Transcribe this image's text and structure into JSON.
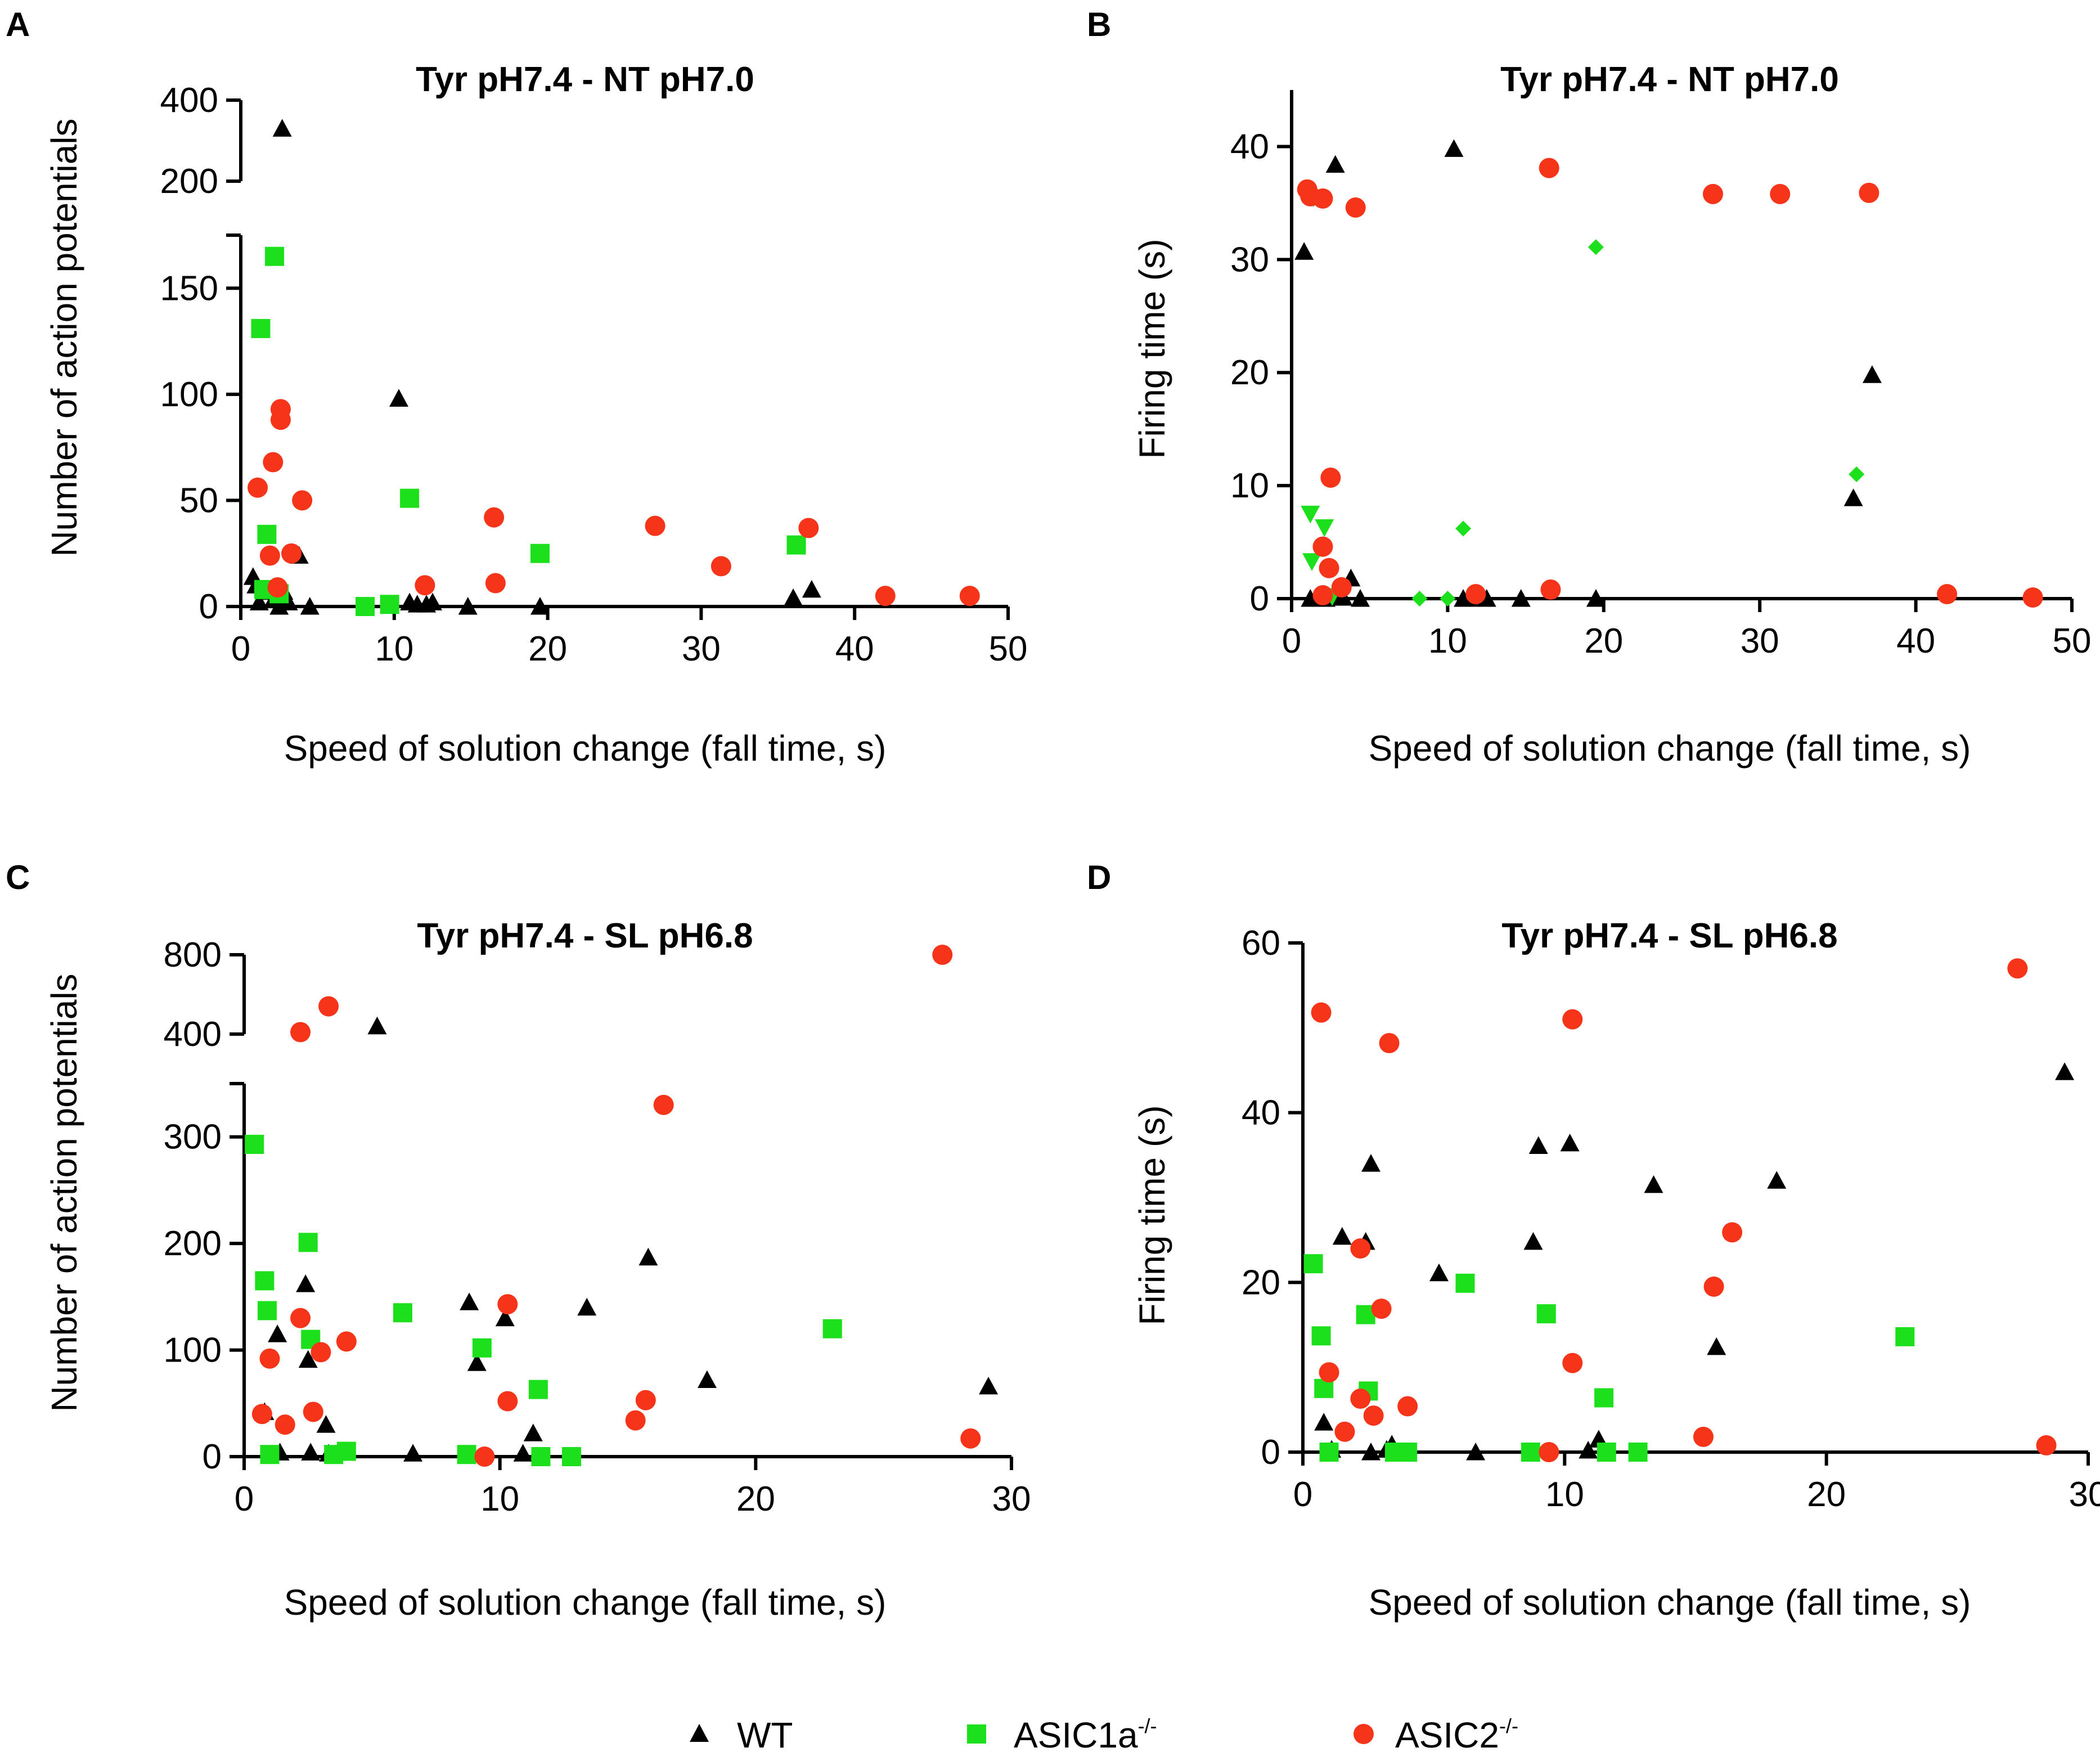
{
  "legend": [
    {
      "series": "WT",
      "label": "WT",
      "sup": "",
      "shape": "triangle",
      "color": "#000000"
    },
    {
      "series": "ASIC1a",
      "label": "ASIC1a",
      "sup": "-/-",
      "shape": "square",
      "color": "#1ce01c"
    },
    {
      "series": "ASIC2",
      "label": "ASIC2",
      "sup": "-/-",
      "shape": "circle",
      "color": "#f63419"
    }
  ],
  "colors": {
    "WT": "#000000",
    "ASIC1a": "#1ce01c",
    "ASIC2": "#f63419"
  },
  "chart_data": [
    {
      "id": "A",
      "letter": "A",
      "type": "scatter",
      "title": "Tyr pH7.4 - NT pH7.0",
      "xlabel": "Speed of solution change (fall time, s)",
      "ylabel": "Number of action potentials",
      "xlim": [
        0,
        50
      ],
      "xticks": [
        "0",
        "10",
        "20",
        "30",
        "40",
        "50"
      ],
      "ylim_lower": [
        0,
        175
      ],
      "yticks_lower": [
        "0",
        "50",
        "100",
        "150"
      ],
      "ylim_upper": [
        200,
        400
      ],
      "yticks_upper": [
        "200",
        "400"
      ],
      "series": [
        {
          "name": "WT",
          "points": [
            [
              0.8,
              14
            ],
            [
              1.0,
              10
            ],
            [
              1.2,
              2
            ],
            [
              1.8,
              7
            ],
            [
              2.1,
              3
            ],
            [
              2.5,
              0
            ],
            [
              2.7,
              330
            ],
            [
              2.8,
              7
            ],
            [
              3.1,
              2
            ],
            [
              3.8,
              24
            ],
            [
              4.5,
              0
            ],
            [
              10.3,
              98
            ],
            [
              11.0,
              2
            ],
            [
              11.5,
              1
            ],
            [
              12.1,
              1
            ],
            [
              12.5,
              2
            ],
            [
              14.8,
              0
            ],
            [
              19.5,
              0
            ],
            [
              36.0,
              4
            ],
            [
              37.2,
              8
            ]
          ]
        },
        {
          "name": "ASIC1a",
          "points": [
            [
              1.3,
              131
            ],
            [
              1.7,
              34
            ],
            [
              2.2,
              165
            ],
            [
              1.5,
              8
            ],
            [
              2.5,
              6
            ],
            [
              8.1,
              0
            ],
            [
              9.7,
              1
            ],
            [
              11.0,
              51
            ],
            [
              19.5,
              25
            ],
            [
              36.2,
              29
            ]
          ]
        },
        {
          "name": "ASIC2",
          "points": [
            [
              1.1,
              56
            ],
            [
              1.9,
              24
            ],
            [
              2.1,
              68
            ],
            [
              2.6,
              93
            ],
            [
              2.6,
              88
            ],
            [
              2.4,
              9
            ],
            [
              3.3,
              25
            ],
            [
              4.0,
              50
            ],
            [
              12.0,
              10
            ],
            [
              16.5,
              42
            ],
            [
              16.6,
              11
            ],
            [
              27.0,
              38
            ],
            [
              31.3,
              19
            ],
            [
              37.0,
              37
            ],
            [
              42.0,
              5
            ],
            [
              47.5,
              5
            ]
          ]
        }
      ]
    },
    {
      "id": "B",
      "letter": "B",
      "type": "scatter",
      "title": "Tyr pH7.4 - NT pH7.0",
      "xlabel": "Speed of solution change (fall time, s)",
      "ylabel": "Firing time (s)",
      "xlim": [
        0,
        50
      ],
      "xticks": [
        "0",
        "10",
        "20",
        "30",
        "40",
        "50"
      ],
      "ylim": [
        0,
        45
      ],
      "yticks": [
        "0",
        "10",
        "20",
        "30",
        "40"
      ],
      "series": [
        {
          "name": "WT",
          "points": [
            [
              0.8,
              30.7
            ],
            [
              2.8,
              38.4
            ],
            [
              10.4,
              39.8
            ],
            [
              1.2,
              0
            ],
            [
              1.8,
              0.3
            ],
            [
              2.2,
              0
            ],
            [
              2.9,
              0.2
            ],
            [
              3.3,
              0.1
            ],
            [
              3.8,
              1.8
            ],
            [
              4.4,
              0
            ],
            [
              11.0,
              0
            ],
            [
              11.4,
              0
            ],
            [
              12.0,
              0.2
            ],
            [
              12.5,
              0
            ],
            [
              14.7,
              0
            ],
            [
              19.5,
              0
            ],
            [
              36.0,
              8.9
            ],
            [
              37.2,
              19.8
            ]
          ]
        },
        {
          "name": "ASIC1a_down",
          "marker": "triangle-down",
          "points": [
            [
              1.4,
              35.5
            ],
            [
              1.2,
              7.5
            ],
            [
              2.1,
              6.3
            ],
            [
              1.3,
              3.3
            ],
            [
              2.6,
              0.2
            ]
          ]
        },
        {
          "name": "ASIC1a_diamond",
          "marker": "diamond",
          "points": [
            [
              19.5,
              31.1
            ],
            [
              36.2,
              11.0
            ],
            [
              11.0,
              6.2
            ],
            [
              8.2,
              0
            ],
            [
              10.0,
              0
            ]
          ]
        },
        {
          "name": "ASIC2",
          "points": [
            [
              1.0,
              36.2
            ],
            [
              1.2,
              35.6
            ],
            [
              2.0,
              35.4
            ],
            [
              4.1,
              34.6
            ],
            [
              16.5,
              38.1
            ],
            [
              27.0,
              35.8
            ],
            [
              31.3,
              35.8
            ],
            [
              37.0,
              35.9
            ],
            [
              2.5,
              10.7
            ],
            [
              2.0,
              4.6
            ],
            [
              2.4,
              2.7
            ],
            [
              3.2,
              1.0
            ],
            [
              2.0,
              0.3
            ],
            [
              11.8,
              0.4
            ],
            [
              16.6,
              0.8
            ],
            [
              42.0,
              0.4
            ],
            [
              47.5,
              0.1
            ]
          ]
        }
      ]
    },
    {
      "id": "C",
      "letter": "C",
      "type": "scatter",
      "title": "Tyr pH7.4 - SL pH6.8",
      "xlabel": "Speed of solution change (fall time, s)",
      "ylabel": "Number of action potentials",
      "xlim": [
        0,
        30
      ],
      "xticks": [
        "0",
        "10",
        "20",
        "30"
      ],
      "ylim_lower": [
        0,
        350
      ],
      "yticks_lower": [
        "0",
        "100",
        "200",
        "300"
      ],
      "ylim_upper": [
        400,
        800
      ],
      "yticks_upper": [
        "400",
        "800"
      ],
      "series": [
        {
          "name": "WT",
          "points": [
            [
              0.8,
              42
            ],
            [
              1.3,
              115
            ],
            [
              1.4,
              4
            ],
            [
              2.4,
              162
            ],
            [
              2.5,
              91
            ],
            [
              2.6,
              4
            ],
            [
              3.2,
              30
            ],
            [
              3.3,
              3
            ],
            [
              5.2,
              440
            ],
            [
              6.6,
              3
            ],
            [
              8.8,
              145
            ],
            [
              9.1,
              88
            ],
            [
              10.2,
              130
            ],
            [
              10.9,
              3
            ],
            [
              11.3,
              22
            ],
            [
              13.4,
              140
            ],
            [
              15.8,
              187
            ],
            [
              18.1,
              72
            ],
            [
              29.1,
              66
            ]
          ]
        },
        {
          "name": "ASIC1a",
          "points": [
            [
              0.4,
              293
            ],
            [
              0.8,
              165
            ],
            [
              0.9,
              137
            ],
            [
              1.0,
              2
            ],
            [
              2.5,
              201
            ],
            [
              2.6,
              110
            ],
            [
              3.5,
              2
            ],
            [
              4.0,
              5
            ],
            [
              6.2,
              135
            ],
            [
              8.7,
              2
            ],
            [
              9.3,
              102
            ],
            [
              11.5,
              63
            ],
            [
              11.6,
              0
            ],
            [
              12.8,
              0
            ],
            [
              23.0,
              120
            ]
          ]
        },
        {
          "name": "ASIC2",
          "points": [
            [
              0.7,
              40
            ],
            [
              1.0,
              92
            ],
            [
              1.6,
              30
            ],
            [
              2.2,
              130
            ],
            [
              2.2,
              410
            ],
            [
              2.7,
              42
            ],
            [
              3.0,
              98
            ],
            [
              3.3,
              540
            ],
            [
              4.0,
              108
            ],
            [
              9.4,
              0
            ],
            [
              10.3,
              143
            ],
            [
              10.3,
              52
            ],
            [
              15.3,
              34
            ],
            [
              15.7,
              53
            ],
            [
              16.4,
              330
            ],
            [
              27.3,
              800
            ],
            [
              28.4,
              17
            ]
          ]
        }
      ]
    },
    {
      "id": "D",
      "letter": "D",
      "type": "scatter",
      "title": "Tyr pH7.4 - SL pH6.8",
      "xlabel": "Speed of solution change (fall time, s)",
      "ylabel": "Firing time (s)",
      "xlim": [
        0,
        30
      ],
      "xticks": [
        "0",
        "10",
        "20",
        "30"
      ],
      "ylim": [
        0,
        60
      ],
      "yticks": [
        "0",
        "20",
        "40",
        "60"
      ],
      "series": [
        {
          "name": "WT",
          "points": [
            [
              0.8,
              3.5
            ],
            [
              1.1,
              0.3
            ],
            [
              1.5,
              25.4
            ],
            [
              2.4,
              24.8
            ],
            [
              2.6,
              0
            ],
            [
              2.6,
              34.0
            ],
            [
              3.2,
              0.3
            ],
            [
              3.4,
              0.9
            ],
            [
              5.2,
              21.1
            ],
            [
              6.6,
              0
            ],
            [
              8.8,
              24.8
            ],
            [
              9.0,
              36.1
            ],
            [
              10.2,
              36.4
            ],
            [
              10.9,
              0.2
            ],
            [
              11.3,
              1.5
            ],
            [
              13.4,
              31.5
            ],
            [
              15.8,
              12.4
            ],
            [
              18.1,
              32.0
            ],
            [
              29.1,
              44.8
            ]
          ]
        },
        {
          "name": "ASIC1a",
          "points": [
            [
              0.4,
              22.2
            ],
            [
              0.7,
              13.7
            ],
            [
              0.8,
              7.5
            ],
            [
              1.0,
              0
            ],
            [
              2.4,
              16.2
            ],
            [
              2.5,
              7.2
            ],
            [
              3.5,
              0
            ],
            [
              4.0,
              0
            ],
            [
              6.2,
              19.9
            ],
            [
              8.7,
              0
            ],
            [
              9.3,
              16.3
            ],
            [
              11.5,
              6.4
            ],
            [
              11.6,
              0
            ],
            [
              12.8,
              0
            ],
            [
              23.0,
              13.6
            ]
          ]
        },
        {
          "name": "ASIC2",
          "points": [
            [
              0.7,
              51.8
            ],
            [
              1.0,
              9.4
            ],
            [
              1.6,
              2.4
            ],
            [
              2.2,
              6.3
            ],
            [
              2.2,
              24.0
            ],
            [
              2.7,
              4.3
            ],
            [
              3.0,
              16.9
            ],
            [
              3.3,
              48.2
            ],
            [
              4.0,
              5.4
            ],
            [
              9.4,
              0
            ],
            [
              10.3,
              51.0
            ],
            [
              10.3,
              10.5
            ],
            [
              15.3,
              1.8
            ],
            [
              15.7,
              19.5
            ],
            [
              16.4,
              25.9
            ],
            [
              27.3,
              57.0
            ],
            [
              28.4,
              0.8
            ]
          ]
        }
      ]
    }
  ]
}
